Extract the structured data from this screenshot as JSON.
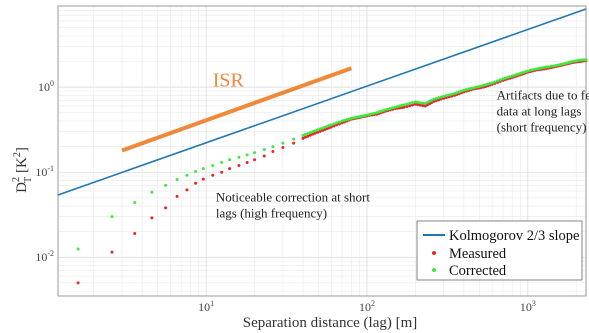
{
  "chart_data": {
    "type": "scatter",
    "xlabel": "Separation distance (lag) [m]",
    "ylabel": "D²T [K²]",
    "ylabel_parts": {
      "base": "D",
      "sup": "2",
      "sub": "T",
      "unit": "[K",
      "unit_sup": "2",
      "unit_close": "]"
    },
    "x_scale": "log",
    "y_scale": "log",
    "xlim": [
      1.2,
      2300
    ],
    "ylim": [
      0.0035,
      9
    ],
    "x_ticks": [
      {
        "value": 10,
        "base": "10",
        "exp": "1"
      },
      {
        "value": 100,
        "base": "10",
        "exp": "2"
      },
      {
        "value": 1000,
        "base": "10",
        "exp": "3"
      }
    ],
    "y_ticks": [
      {
        "value": 0.01,
        "base": "10",
        "exp": "-2"
      },
      {
        "value": 0.1,
        "base": "10",
        "exp": "-1"
      },
      {
        "value": 1,
        "base": "10",
        "exp": "0"
      }
    ],
    "grid": true,
    "legend": {
      "placement": "bottom-right",
      "entries": [
        {
          "label": "Kolmogorov 2/3 slope",
          "kind": "line",
          "color": "#1f77b4"
        },
        {
          "label": "Measured",
          "kind": "marker",
          "color": "#e8262a"
        },
        {
          "label": "Corrected",
          "kind": "marker",
          "color": "#3ee83e"
        }
      ]
    },
    "series": [
      {
        "name": "Kolmogorov 2/3 slope",
        "kind": "line",
        "color": "#1f77b4",
        "x": [
          1.2,
          2300
        ],
        "y": [
          0.054,
          8.3
        ]
      },
      {
        "name": "ISR",
        "kind": "segment",
        "color": "#f0883a",
        "x": [
          3.0,
          80
        ],
        "y": [
          0.18,
          1.67
        ]
      },
      {
        "name": "Measured",
        "kind": "scatter",
        "color": "#e8262a",
        "x": [
          1.6,
          2.6,
          3.6,
          4.6,
          5.6,
          6.6,
          7.6,
          8.6,
          9.6,
          11,
          12.5,
          14,
          16,
          18,
          20,
          23,
          26,
          30,
          35,
          40,
          46,
          53,
          60,
          70,
          80,
          90,
          100,
          115,
          130,
          150,
          170,
          200,
          230,
          260,
          300,
          350,
          400,
          460,
          530,
          600,
          700,
          800,
          900,
          1000,
          1150,
          1300,
          1500,
          1700,
          1900,
          2100,
          2300
        ],
        "y": [
          0.005,
          0.0115,
          0.019,
          0.029,
          0.038,
          0.052,
          0.062,
          0.074,
          0.083,
          0.092,
          0.1,
          0.11,
          0.12,
          0.13,
          0.14,
          0.155,
          0.175,
          0.195,
          0.22,
          0.25,
          0.28,
          0.31,
          0.34,
          0.38,
          0.42,
          0.44,
          0.46,
          0.48,
          0.52,
          0.56,
          0.58,
          0.63,
          0.6,
          0.68,
          0.74,
          0.8,
          0.88,
          0.95,
          1.0,
          1.08,
          1.2,
          1.3,
          1.4,
          1.5,
          1.6,
          1.65,
          1.75,
          1.85,
          1.95,
          2.0,
          2.05
        ]
      },
      {
        "name": "Corrected",
        "kind": "scatter",
        "color": "#3ee83e",
        "x": [
          1.6,
          2.6,
          3.6,
          4.6,
          5.6,
          6.6,
          7.6,
          8.6,
          9.6,
          11,
          12.5,
          14,
          16,
          18,
          20,
          23,
          26,
          30,
          35,
          40,
          46,
          53,
          60,
          70,
          80,
          90,
          100,
          115,
          130,
          150,
          170,
          200,
          230,
          260,
          300,
          350,
          400,
          460,
          530,
          600,
          700,
          800,
          900,
          1000,
          1150,
          1300,
          1500,
          1700,
          1900,
          2100,
          2300
        ],
        "y": [
          0.0125,
          0.03,
          0.044,
          0.058,
          0.07,
          0.082,
          0.092,
          0.102,
          0.11,
          0.12,
          0.13,
          0.14,
          0.15,
          0.16,
          0.17,
          0.185,
          0.2,
          0.22,
          0.245,
          0.27,
          0.3,
          0.33,
          0.36,
          0.4,
          0.43,
          0.45,
          0.47,
          0.5,
          0.54,
          0.58,
          0.62,
          0.67,
          0.64,
          0.72,
          0.78,
          0.84,
          0.92,
          0.98,
          1.05,
          1.12,
          1.25,
          1.35,
          1.45,
          1.55,
          1.65,
          1.72,
          1.8,
          1.9,
          2.0,
          2.08,
          2.1
        ]
      }
    ],
    "annotations": [
      {
        "text": "ISR",
        "x": 11,
        "y": 1.02,
        "color": "#f0883a",
        "size": "large"
      },
      {
        "lines": [
          "Artifacts due to few",
          "data at long lags",
          "(short frequency)"
        ],
        "x": 640,
        "y": 0.72,
        "color": "#222"
      },
      {
        "lines": [
          "Noticeable correction at short",
          "lags (high frequency)"
        ],
        "x": 11.5,
        "y": 0.045,
        "color": "#222"
      }
    ]
  }
}
